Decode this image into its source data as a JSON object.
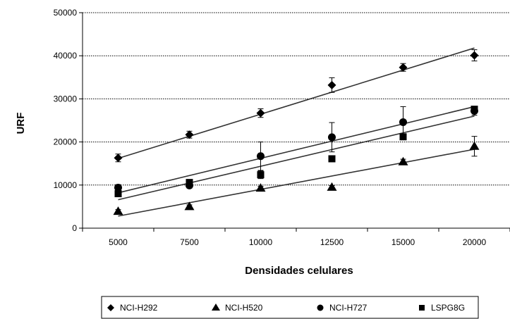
{
  "chart_data": {
    "type": "scatter",
    "title": "",
    "xlabel": "Densidades celulares",
    "ylabel": "URF",
    "categories": [
      "5000",
      "7500",
      "10000",
      "12500",
      "15000",
      "20000"
    ],
    "ylim": [
      0,
      50000
    ],
    "yticks": [
      "0",
      "10000",
      "20000",
      "30000",
      "40000",
      "50000"
    ],
    "grid": "horizontal dotted",
    "legend_position": "bottom",
    "series": [
      {
        "name": "NCI-H292",
        "marker": "diamond",
        "values": [
          16300,
          21700,
          26700,
          33200,
          37300,
          40100
        ],
        "errors": [
          900,
          800,
          1000,
          1700,
          900,
          1300
        ],
        "trend": [
          16200,
          41800
        ]
      },
      {
        "name": "NCI-H520",
        "marker": "triangle",
        "values": [
          3900,
          5000,
          9300,
          9500,
          15400,
          19000
        ],
        "errors": [
          400,
          400,
          400,
          400,
          600,
          2300
        ],
        "trend": [
          2800,
          18300
        ]
      },
      {
        "name": "NCI-H727",
        "marker": "circle",
        "values": [
          9400,
          9900,
          16700,
          21100,
          24600,
          27200
        ],
        "errors": [
          700,
          600,
          3300,
          3400,
          3600,
          1000
        ],
        "trend": [
          8200,
          28200
        ]
      },
      {
        "name": "LSPG8G",
        "marker": "square",
        "values": [
          8000,
          10600,
          12400,
          16100,
          21200,
          27600
        ],
        "errors": [
          500,
          500,
          900,
          500,
          600,
          500
        ],
        "trend": [
          6600,
          26000
        ]
      }
    ]
  }
}
